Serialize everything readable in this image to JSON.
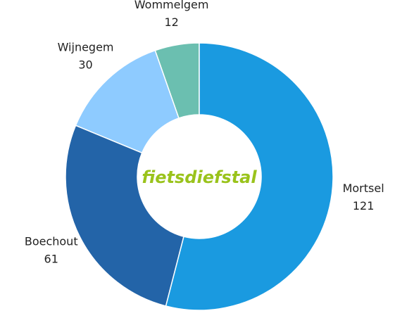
{
  "chart_data": {
    "type": "donut",
    "center_text": "fietsdiefstal",
    "categories": [
      "Mortsel",
      "Boechout",
      "Wijnegem",
      "Wommelgem"
    ],
    "values": [
      121,
      61,
      30,
      12
    ],
    "colors": [
      "#1a9ae0",
      "#2364a8",
      "#8ecbff",
      "#6bbfb0"
    ]
  }
}
